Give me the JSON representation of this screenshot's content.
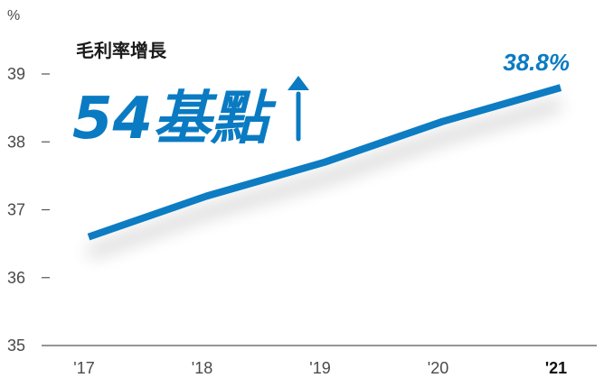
{
  "chart_data": {
    "type": "line",
    "unit_label": "%",
    "subtitle": "毛利率增長",
    "headline": "54基點",
    "categories": [
      "'17",
      "'18",
      "'19",
      "'20",
      "'21"
    ],
    "highlight_category": "'21",
    "series": [
      {
        "values": [
          36.6,
          37.2,
          37.7,
          38.3,
          38.8
        ]
      }
    ],
    "end_label": "38.8%",
    "ylim": [
      35,
      39
    ],
    "yticks": [
      "35",
      "36",
      "37",
      "38",
      "39"
    ],
    "grid": false,
    "colors": {
      "line": "#0a7bc2",
      "accent": "#0a7bc2",
      "axis": "#555555"
    },
    "headline_icon": "up-arrow-icon"
  }
}
